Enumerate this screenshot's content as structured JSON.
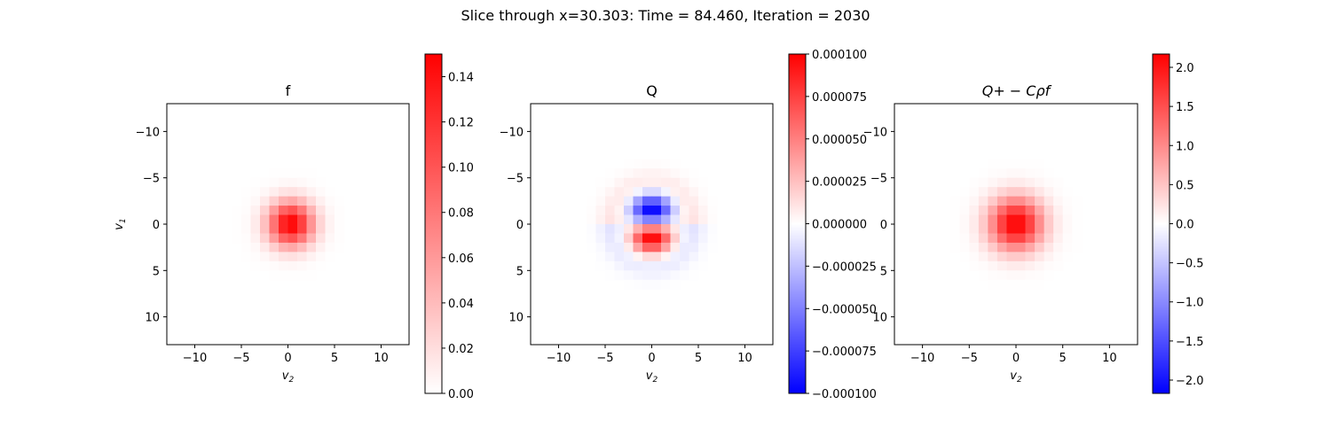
{
  "figure": {
    "suptitle": "Slice through x=30.303: Time = 84.460, Iteration = 2030"
  },
  "chart_data": [
    {
      "type": "heatmap",
      "title": "f",
      "xlabel": "v2",
      "ylabel": "v1",
      "xlim": [
        -13,
        13
      ],
      "ylim": [
        13,
        -13
      ],
      "xticks": [
        -10,
        -5,
        0,
        5,
        10
      ],
      "yticks": [
        -10,
        -5,
        0,
        5,
        10
      ],
      "colorbar": {
        "min": 0.0,
        "max": 0.15,
        "ticks": [
          "0.00",
          "0.02",
          "0.04",
          "0.06",
          "0.08",
          "0.10",
          "0.12",
          "0.14"
        ],
        "cmap": "white-red"
      },
      "field": {
        "kind": "gaussian",
        "amplitude": 0.15,
        "center": [
          0.3,
          0
        ],
        "sigma": 1.7
      }
    },
    {
      "type": "heatmap",
      "title": "Q",
      "xlabel": "v2",
      "ylabel": "",
      "xlim": [
        -13,
        13
      ],
      "ylim": [
        13,
        -13
      ],
      "xticks": [
        -10,
        -5,
        0,
        5,
        10
      ],
      "yticks": [
        -10,
        -5,
        0,
        5,
        10
      ],
      "colorbar": {
        "min": -0.0001,
        "max": 0.0001,
        "ticks": [
          "-0.000100",
          "-0.000075",
          "-0.000050",
          "-0.000025",
          "0.000000",
          "0.000025",
          "0.000050",
          "0.000075",
          "0.000100"
        ],
        "cmap": "bwr"
      },
      "field": {
        "kind": "dipole",
        "amplitude": 0.0001,
        "center": [
          0,
          0
        ],
        "sigma": 1.5,
        "ring_amplitude": 1.2e-05,
        "ring_radius": 4.2
      }
    },
    {
      "type": "heatmap",
      "title": "Q+ − Cρf",
      "xlabel": "v2",
      "ylabel": "",
      "xlim": [
        -13,
        13
      ],
      "ylim": [
        13,
        -13
      ],
      "xticks": [
        -10,
        -5,
        0,
        5,
        10
      ],
      "yticks": [
        -10,
        -5,
        0,
        5,
        10
      ],
      "colorbar": {
        "min": -2.17,
        "max": 2.17,
        "ticks": [
          "-2.0",
          "-1.5",
          "-1.0",
          "-0.5",
          "0.0",
          "0.5",
          "1.0",
          "1.5",
          "2.0"
        ],
        "cmap": "bwr"
      },
      "field": {
        "kind": "gaussian",
        "amplitude": 2.17,
        "center": [
          0,
          0
        ],
        "sigma": 2.0
      }
    }
  ]
}
